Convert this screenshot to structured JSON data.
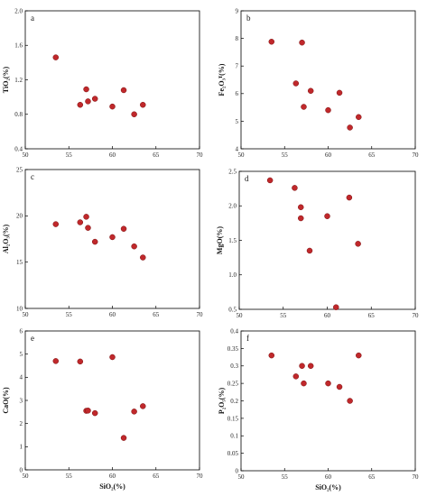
{
  "colors": {
    "marker": "#c0282b",
    "axis": "#000000"
  },
  "chart_data": [
    {
      "type": "scatter",
      "panel": "a",
      "ylabel": "TiO₂(%)",
      "xlabel": "",
      "xlim": [
        50,
        70
      ],
      "ylim": [
        0.4,
        2.0
      ],
      "xticks": [
        50,
        55,
        60,
        65,
        70
      ],
      "yticks": [
        0.4,
        0.8,
        1.2,
        1.6,
        2.0
      ],
      "ytick_labels": [
        "0.4",
        "0.8",
        "1.2",
        "1.6",
        "2.0"
      ],
      "points": [
        {
          "x": 53.5,
          "y": 1.46
        },
        {
          "x": 56.3,
          "y": 0.91
        },
        {
          "x": 57.0,
          "y": 1.09
        },
        {
          "x": 57.2,
          "y": 0.95
        },
        {
          "x": 58.0,
          "y": 0.98
        },
        {
          "x": 60.0,
          "y": 0.89
        },
        {
          "x": 61.3,
          "y": 1.08
        },
        {
          "x": 62.5,
          "y": 0.8
        },
        {
          "x": 63.5,
          "y": 0.91
        }
      ]
    },
    {
      "type": "scatter",
      "panel": "b",
      "ylabel": "Fe₂O₃ᵀ(%)",
      "xlabel": "",
      "xlim": [
        50,
        70
      ],
      "ylim": [
        4,
        9
      ],
      "xticks": [
        50,
        55,
        60,
        65,
        70
      ],
      "yticks": [
        4,
        5,
        6,
        7,
        8,
        9
      ],
      "ytick_labels": [
        "4",
        "5",
        "6",
        "7",
        "8",
        "9"
      ],
      "points": [
        {
          "x": 53.5,
          "y": 7.88
        },
        {
          "x": 56.3,
          "y": 6.37
        },
        {
          "x": 57.0,
          "y": 7.85
        },
        {
          "x": 57.2,
          "y": 5.52
        },
        {
          "x": 58.0,
          "y": 6.1
        },
        {
          "x": 60.0,
          "y": 5.4
        },
        {
          "x": 61.3,
          "y": 6.03
        },
        {
          "x": 62.5,
          "y": 4.77
        },
        {
          "x": 63.5,
          "y": 5.15
        }
      ]
    },
    {
      "type": "scatter",
      "panel": "c",
      "ylabel": "Al₂O₃(%)",
      "xlabel": "",
      "xlim": [
        50,
        70
      ],
      "ylim": [
        10,
        25
      ],
      "xticks": [
        50,
        55,
        60,
        65,
        70
      ],
      "yticks": [
        10,
        15,
        20,
        25
      ],
      "ytick_labels": [
        "10",
        "15",
        "20",
        "25"
      ],
      "points": [
        {
          "x": 53.5,
          "y": 19.1
        },
        {
          "x": 56.3,
          "y": 19.3
        },
        {
          "x": 57.0,
          "y": 19.9
        },
        {
          "x": 57.2,
          "y": 18.7
        },
        {
          "x": 58.0,
          "y": 17.2
        },
        {
          "x": 60.0,
          "y": 17.7
        },
        {
          "x": 61.3,
          "y": 18.6
        },
        {
          "x": 62.5,
          "y": 16.7
        },
        {
          "x": 63.5,
          "y": 15.5
        }
      ]
    },
    {
      "type": "scatter",
      "panel": "d",
      "ylabel": "MgO(%)",
      "xlabel": "",
      "xlim": [
        50,
        70
      ],
      "ylim": [
        0.5,
        2.5
      ],
      "xticks": [
        50,
        55,
        60,
        65,
        70
      ],
      "yticks": [
        0.5,
        1.0,
        1.5,
        2.0,
        2.5
      ],
      "ytick_labels": [
        "0.5",
        "1.0",
        "1.5",
        "2.0",
        "2.5"
      ],
      "points": [
        {
          "x": 53.5,
          "y": 2.37
        },
        {
          "x": 56.3,
          "y": 2.26
        },
        {
          "x": 57.0,
          "y": 1.98
        },
        {
          "x": 57.0,
          "y": 1.82
        },
        {
          "x": 58.0,
          "y": 1.35
        },
        {
          "x": 60.0,
          "y": 1.85
        },
        {
          "x": 61.0,
          "y": 0.53
        },
        {
          "x": 62.5,
          "y": 2.12
        },
        {
          "x": 63.5,
          "y": 1.45
        }
      ]
    },
    {
      "type": "scatter",
      "panel": "e",
      "ylabel": "CaO(%)",
      "xlabel": "SiO₂(%)",
      "xlim": [
        50,
        70
      ],
      "ylim": [
        0,
        6
      ],
      "xticks": [
        50,
        55,
        60,
        65,
        70
      ],
      "yticks": [
        0,
        1,
        2,
        3,
        4,
        5,
        6
      ],
      "ytick_labels": [
        "0",
        "1",
        "2",
        "3",
        "4",
        "5",
        "6"
      ],
      "points": [
        {
          "x": 53.5,
          "y": 4.7
        },
        {
          "x": 56.3,
          "y": 4.68
        },
        {
          "x": 57.0,
          "y": 2.55
        },
        {
          "x": 57.2,
          "y": 2.56
        },
        {
          "x": 58.0,
          "y": 2.45
        },
        {
          "x": 60.0,
          "y": 4.87
        },
        {
          "x": 61.3,
          "y": 1.38
        },
        {
          "x": 62.5,
          "y": 2.52
        },
        {
          "x": 63.5,
          "y": 2.75
        }
      ]
    },
    {
      "type": "scatter",
      "panel": "f",
      "ylabel": "P₂O₅(%)",
      "xlabel": "SiO₂(%)",
      "xlim": [
        50,
        70
      ],
      "ylim": [
        0,
        0.4
      ],
      "xticks": [
        50,
        55,
        60,
        65,
        70
      ],
      "yticks": [
        0,
        0.05,
        0.1,
        0.15,
        0.2,
        0.25,
        0.3,
        0.35,
        0.4
      ],
      "ytick_labels": [
        "0",
        "0.05",
        "0.1",
        "0.15",
        "0.2",
        "0.25",
        "0.3",
        "0.35",
        "0.4"
      ],
      "points": [
        {
          "x": 53.5,
          "y": 0.33
        },
        {
          "x": 56.3,
          "y": 0.27
        },
        {
          "x": 57.0,
          "y": 0.3
        },
        {
          "x": 57.2,
          "y": 0.25
        },
        {
          "x": 58.0,
          "y": 0.3
        },
        {
          "x": 60.0,
          "y": 0.25
        },
        {
          "x": 61.3,
          "y": 0.24
        },
        {
          "x": 62.5,
          "y": 0.2
        },
        {
          "x": 63.5,
          "y": 0.33
        }
      ]
    }
  ]
}
